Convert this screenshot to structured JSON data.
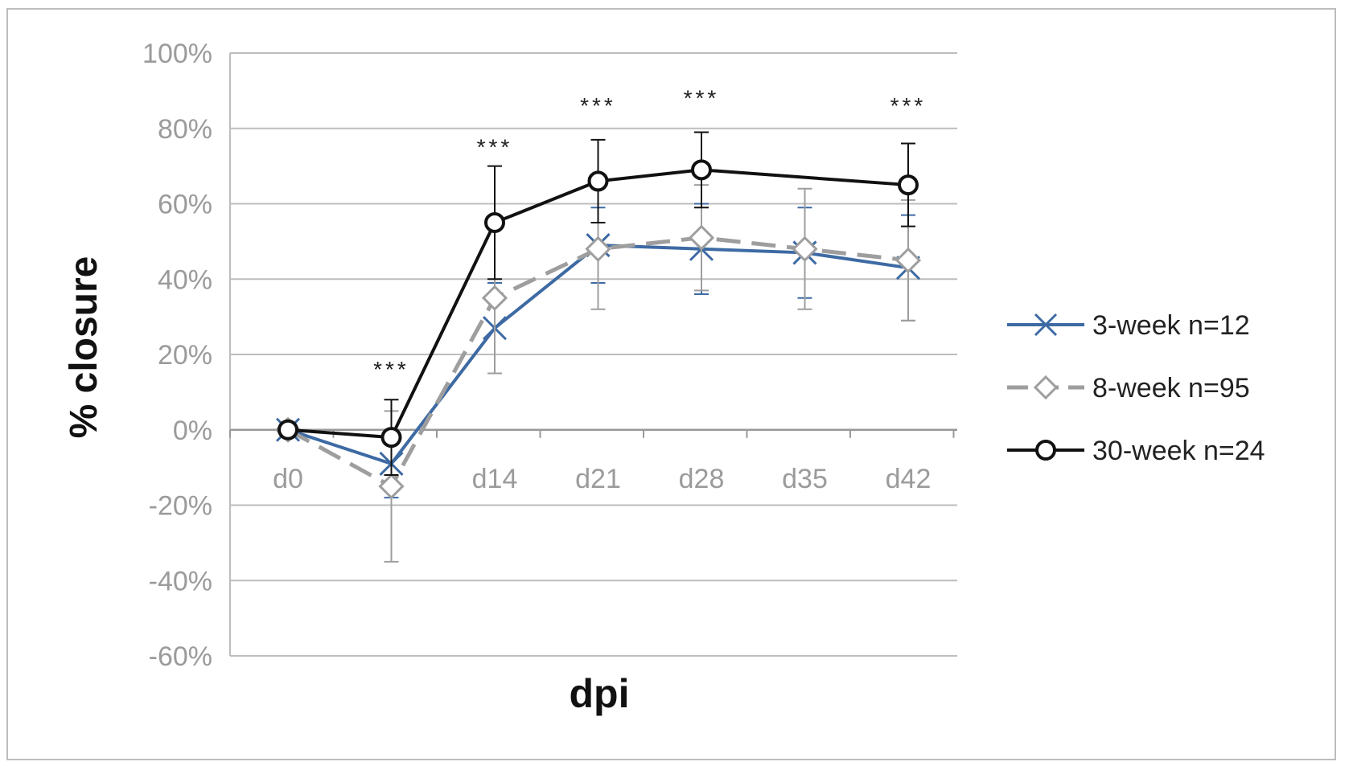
{
  "chart_data": {
    "type": "line",
    "title": "",
    "xlabel": "dpi",
    "ylabel": "% closure",
    "ylim": [
      -60,
      100
    ],
    "y_ticks": [
      "100%",
      "80%",
      "60%",
      "40%",
      "20%",
      "0%",
      "-20%",
      "-40%",
      "-60%"
    ],
    "y_tick_values": [
      100,
      80,
      60,
      40,
      20,
      0,
      -20,
      -40,
      -60
    ],
    "categories": [
      "d0",
      "",
      "d14",
      "d21",
      "d28",
      "d35",
      "d42"
    ],
    "grid": true,
    "legend_position": "right",
    "series": [
      {
        "name": "3-week n=12",
        "color": "#3d6aa3",
        "marker": "x",
        "dash": "solid",
        "values": [
          0,
          -9,
          27,
          49,
          48,
          47,
          43
        ],
        "error": [
          0,
          9,
          12,
          10,
          12,
          12,
          14
        ]
      },
      {
        "name": "8-week n=95",
        "color": "#9e9e9e",
        "marker": "diamond",
        "dash": "dashed",
        "values": [
          0,
          -15,
          35,
          48,
          51,
          48,
          45
        ],
        "error": [
          0,
          20,
          20,
          16,
          14,
          16,
          16
        ]
      },
      {
        "name": "30-week n=24",
        "color": "#111111",
        "marker": "circle",
        "dash": "solid",
        "values": [
          0,
          -2,
          55,
          66,
          69,
          0,
          65
        ],
        "present": [
          true,
          true,
          true,
          true,
          true,
          false,
          true
        ],
        "error": [
          0,
          10,
          15,
          11,
          10,
          0,
          11
        ]
      }
    ],
    "annotations": [
      {
        "category_index": 1,
        "value": 14,
        "text": "***"
      },
      {
        "category_index": 2,
        "value": 73,
        "text": "***"
      },
      {
        "category_index": 3,
        "value": 84,
        "text": "***"
      },
      {
        "category_index": 4,
        "value": 86,
        "text": "***"
      },
      {
        "category_index": 6,
        "value": 84,
        "text": "***"
      }
    ]
  }
}
